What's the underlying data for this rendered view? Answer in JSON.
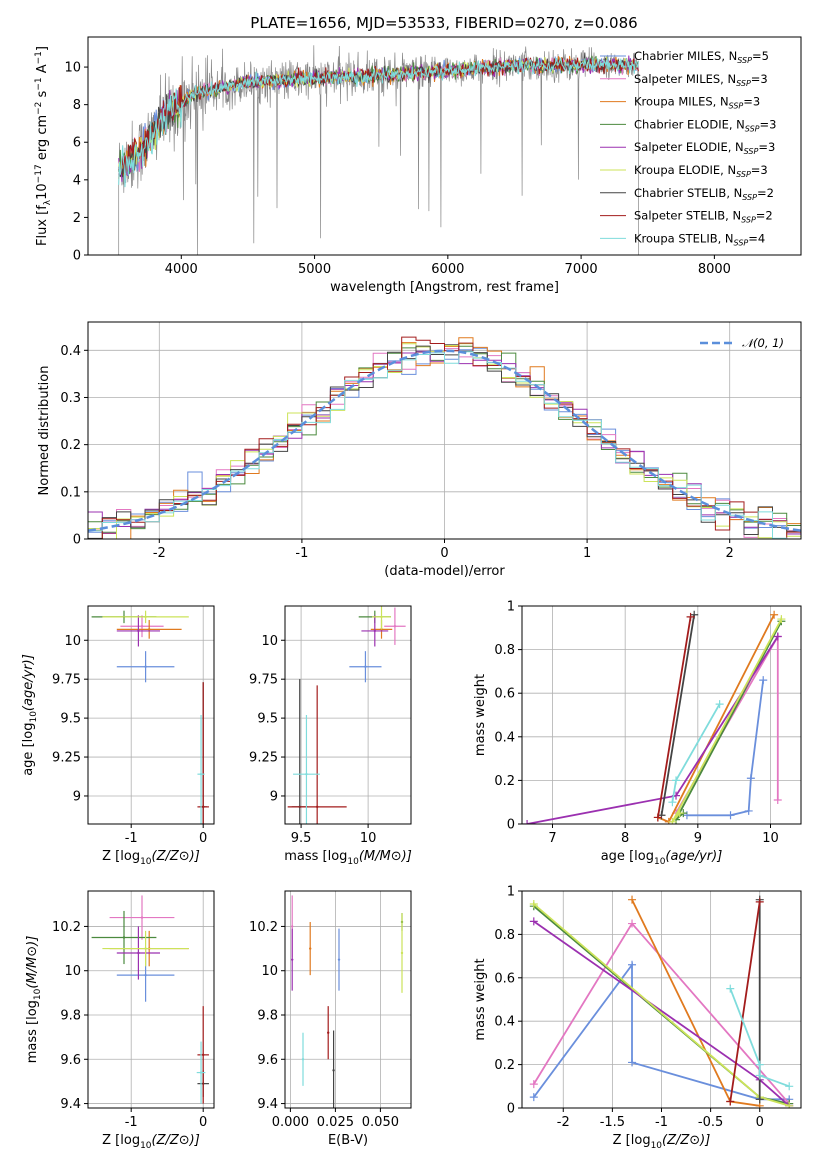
{
  "figure": {
    "title": "PLATE=1656, MJD=53533, FIBERID=0270, z=0.086"
  },
  "colors": {
    "Chabrier MILES": "#6a8fdc",
    "Salpeter MILES": "#e377c2",
    "Kroupa MILES": "#e07a1f",
    "Chabrier ELODIE": "#4b8a3e",
    "Salpeter ELODIE": "#9b30b0",
    "Kroupa ELODIE": "#cce35a",
    "Chabrier STELIB": "#444444",
    "Salpeter STELIB": "#a31c1c",
    "Kroupa STELIB": "#7fdcdc",
    "data": "#888888",
    "gaussian": "#5b8fdb"
  },
  "chart_data": [
    {
      "id": "spectrum",
      "type": "line",
      "title": "PLATE=1656, MJD=53533, FIBERID=0270, z=0.086",
      "xlabel": "wavelength [Angstrom, rest frame]",
      "ylabel": "Flux [f_λ10^-17 erg cm^-2 s^-1 A^-1]",
      "xlim": [
        3300,
        8650
      ],
      "ylim": [
        0,
        11.6
      ],
      "xticks": [
        4000,
        5000,
        6000,
        7000,
        8000
      ],
      "yticks": [
        0,
        2,
        4,
        6,
        8,
        10
      ],
      "legend_position": "upper-right",
      "data_range": [
        3530,
        7430
      ],
      "continuum": [
        [
          3530,
          4.6
        ],
        [
          3700,
          5.6
        ],
        [
          3900,
          7.6
        ],
        [
          4100,
          8.6
        ],
        [
          4300,
          8.9
        ],
        [
          4500,
          9.2
        ],
        [
          4800,
          9.3
        ],
        [
          5000,
          9.4
        ],
        [
          5300,
          9.5
        ],
        [
          5600,
          9.6
        ],
        [
          6000,
          9.8
        ],
        [
          6500,
          10.1
        ],
        [
          7000,
          10.1
        ],
        [
          7430,
          10.1
        ]
      ],
      "legend": [
        "Chabrier MILES, N_SSP=5",
        "Salpeter MILES, N_SSP=3",
        "Kroupa MILES, N_SSP=3",
        "Chabrier ELODIE, N_SSP=3",
        "Salpeter ELODIE, N_SSP=3",
        "Kroupa ELODIE, N_SSP=3",
        "Chabrier STELIB, N_SSP=2",
        "Salpeter STELIB, N_SSP=2",
        "Kroupa STELIB, N_SSP=4"
      ]
    },
    {
      "id": "residuals",
      "type": "line",
      "xlabel": "(data-model)/error",
      "ylabel": "Normed distribution",
      "xlim": [
        -2.5,
        2.5
      ],
      "ylim": [
        0,
        0.46
      ],
      "xticks": [
        -2,
        -1,
        0,
        1,
        2
      ],
      "yticks": [
        0.0,
        0.1,
        0.2,
        0.3,
        0.4
      ],
      "gaussian_label": "N(0,1)",
      "legend_position": "upper-right",
      "bin_width": 0.1
    },
    {
      "id": "age_vs_Z",
      "type": "scatter",
      "xlabel": "Z [log10(Z/Z⊙)]",
      "ylabel": "age  [log10(age/yr)]",
      "xlim": [
        -1.6,
        0.15
      ],
      "ylim": [
        8.82,
        10.22
      ],
      "xticks": [
        -1,
        0
      ],
      "yticks": [
        9.0,
        9.25,
        9.5,
        9.75,
        10.0
      ],
      "points": [
        {
          "model": "Chabrier MILES",
          "x": -0.8,
          "y": 9.83,
          "xerr": 0.4,
          "yerr": 0.1
        },
        {
          "model": "Salpeter MILES",
          "x": -0.85,
          "y": 10.09,
          "xerr": 0.3,
          "yerr": 0.07
        },
        {
          "model": "Kroupa MILES",
          "x": -0.75,
          "y": 10.07,
          "xerr": 0.45,
          "yerr": 0.06
        },
        {
          "model": "Chabrier ELODIE",
          "x": -1.1,
          "y": 10.15,
          "xerr": 0.45,
          "yerr": 0.04
        },
        {
          "model": "Salpeter ELODIE",
          "x": -0.9,
          "y": 10.06,
          "xerr": 0.3,
          "yerr": 0.1
        },
        {
          "model": "Kroupa ELODIE",
          "x": -0.8,
          "y": 10.15,
          "xerr": 0.6,
          "yerr": 0.04
        },
        {
          "model": "Chabrier STELIB",
          "x": 0.0,
          "y": 8.93,
          "xerr": 0.05,
          "yerr": 0.8
        },
        {
          "model": "Salpeter STELIB",
          "x": 0.0,
          "y": 8.93,
          "xerr": 0.08,
          "yerr": 0.8
        },
        {
          "model": "Kroupa STELIB",
          "x": -0.03,
          "y": 9.14,
          "xerr": 0.05,
          "yerr": 0.38
        }
      ]
    },
    {
      "id": "age_vs_mass",
      "type": "scatter",
      "xlabel": "mass [log10(M/M⊙)]",
      "ylabel": "",
      "xlim": [
        9.38,
        10.32
      ],
      "ylim": [
        8.82,
        10.22
      ],
      "xticks": [
        9.5,
        10.0
      ],
      "yticks": [
        9.0,
        9.25,
        9.5,
        9.75,
        10.0
      ],
      "points": [
        {
          "model": "Chabrier MILES",
          "x": 9.98,
          "y": 9.83,
          "xerr": 0.12,
          "yerr": 0.1
        },
        {
          "model": "Salpeter MILES",
          "x": 10.2,
          "y": 10.09,
          "xerr": 0.08,
          "yerr": 0.12
        },
        {
          "model": "Kroupa MILES",
          "x": 10.1,
          "y": 10.07,
          "xerr": 0.08,
          "yerr": 0.06
        },
        {
          "model": "Chabrier ELODIE",
          "x": 10.05,
          "y": 10.15,
          "xerr": 0.12,
          "yerr": 0.04
        },
        {
          "model": "Salpeter ELODIE",
          "x": 10.05,
          "y": 10.06,
          "xerr": 0.1,
          "yerr": 0.1
        },
        {
          "model": "Kroupa ELODIE",
          "x": 10.1,
          "y": 10.15,
          "xerr": 0.07,
          "yerr": 0.08
        },
        {
          "model": "Chabrier STELIB",
          "x": 9.49,
          "y": 8.93,
          "xerr": 0.06,
          "yerr": 0.82
        },
        {
          "model": "Salpeter STELIB",
          "x": 9.62,
          "y": 8.93,
          "xerr": 0.22,
          "yerr": 0.78
        },
        {
          "model": "Kroupa STELIB",
          "x": 9.54,
          "y": 9.14,
          "xerr": 0.1,
          "yerr": 0.38
        }
      ]
    },
    {
      "id": "weight_vs_age",
      "type": "line",
      "xlabel": "age  [log10(age/yr)]",
      "ylabel": "mass weight",
      "xlim": [
        6.58,
        10.42
      ],
      "ylim": [
        0,
        1.0
      ],
      "xticks": [
        7,
        8,
        9,
        10
      ],
      "yticks": [
        0.0,
        0.2,
        0.4,
        0.6,
        0.8,
        1.0
      ],
      "series": [
        {
          "model": "Chabrier MILES",
          "x": [
            8.85,
            9.45,
            9.7,
            9.73,
            9.9
          ],
          "y": [
            0.04,
            0.04,
            0.06,
            0.21,
            0.66
          ]
        },
        {
          "model": "Salpeter MILES",
          "x": [
            8.7,
            10.1,
            10.1
          ],
          "y": [
            0.05,
            0.86,
            0.11
          ]
        },
        {
          "model": "Kroupa MILES",
          "x": [
            8.45,
            8.6,
            10.05
          ],
          "y": [
            0.03,
            0.01,
            0.96
          ]
        },
        {
          "model": "Chabrier ELODIE",
          "x": [
            8.8,
            8.7,
            10.15
          ],
          "y": [
            0.05,
            0.02,
            0.93
          ]
        },
        {
          "model": "Salpeter ELODIE",
          "x": [
            6.65,
            8.7,
            10.1
          ],
          "y": [
            0.0,
            0.13,
            0.86
          ]
        },
        {
          "model": "Kroupa ELODIE",
          "x": [
            8.75,
            8.65,
            10.15
          ],
          "y": [
            0.05,
            0.01,
            0.94
          ]
        },
        {
          "model": "Chabrier STELIB",
          "x": [
            8.5,
            8.95
          ],
          "y": [
            0.04,
            0.96
          ]
        },
        {
          "model": "Salpeter STELIB",
          "x": [
            8.45,
            8.9
          ],
          "y": [
            0.03,
            0.95
          ]
        },
        {
          "model": "Kroupa STELIB",
          "x": [
            8.65,
            8.7,
            9.3
          ],
          "y": [
            0.1,
            0.2,
            0.55
          ]
        }
      ]
    },
    {
      "id": "mass_vs_Z",
      "type": "scatter",
      "xlabel": "Z [log10(Z/Z⊙)]",
      "ylabel": "mass [log10(M/M⊙)]",
      "xlim": [
        -1.6,
        0.15
      ],
      "ylim": [
        9.38,
        10.36
      ],
      "xticks": [
        -1,
        0
      ],
      "yticks": [
        9.4,
        9.6,
        9.8,
        10.0,
        10.2
      ],
      "points": [
        {
          "model": "Chabrier MILES",
          "x": -0.8,
          "y": 9.98,
          "xerr": 0.4,
          "yerr": 0.12
        },
        {
          "model": "Salpeter MILES",
          "x": -0.85,
          "y": 10.24,
          "xerr": 0.45,
          "yerr": 0.1
        },
        {
          "model": "Kroupa MILES",
          "x": -0.75,
          "y": 10.1,
          "xerr": 0.55,
          "yerr": 0.08
        },
        {
          "model": "Chabrier ELODIE",
          "x": -1.1,
          "y": 10.15,
          "xerr": 0.45,
          "yerr": 0.12
        },
        {
          "model": "Salpeter ELODIE",
          "x": -0.9,
          "y": 10.08,
          "xerr": 0.3,
          "yerr": 0.12
        },
        {
          "model": "Kroupa ELODIE",
          "x": -0.8,
          "y": 10.1,
          "xerr": 0.6,
          "yerr": 0.08
        },
        {
          "model": "Chabrier STELIB",
          "x": 0.0,
          "y": 9.49,
          "xerr": 0.08,
          "yerr": 0.06
        },
        {
          "model": "Salpeter STELIB",
          "x": 0.0,
          "y": 9.62,
          "xerr": 0.08,
          "yerr": 0.22
        },
        {
          "model": "Kroupa STELIB",
          "x": -0.03,
          "y": 9.54,
          "xerr": 0.06,
          "yerr": 0.14
        }
      ]
    },
    {
      "id": "mass_vs_ebv",
      "type": "scatter",
      "xlabel": "E(B-V)",
      "ylabel": "",
      "xlim": [
        -0.003,
        0.067
      ],
      "ylim": [
        9.38,
        10.36
      ],
      "xticks": [
        0.0,
        0.025,
        0.05
      ],
      "xtick_labels": [
        "0.000",
        "0.025",
        "0.050"
      ],
      "yticks": [
        9.4,
        9.6,
        9.8,
        10.0,
        10.2
      ],
      "points": [
        {
          "model": "Chabrier MILES",
          "x": 0.027,
          "y": 10.05,
          "yerr": 0.14
        },
        {
          "model": "Salpeter MILES",
          "x": 0.001,
          "y": 10.2,
          "yerr": 0.14
        },
        {
          "model": "Kroupa MILES",
          "x": 0.011,
          "y": 10.1,
          "yerr": 0.12
        },
        {
          "model": "Chabrier ELODIE",
          "x": 0.062,
          "y": 10.22,
          "yerr": 0.04
        },
        {
          "model": "Salpeter ELODIE",
          "x": 0.001,
          "y": 10.05,
          "yerr": 0.14
        },
        {
          "model": "Kroupa ELODIE",
          "x": 0.062,
          "y": 10.08,
          "yerr": 0.18
        },
        {
          "model": "Chabrier STELIB",
          "x": 0.024,
          "y": 9.55,
          "yerr": 0.18
        },
        {
          "model": "Salpeter STELIB",
          "x": 0.021,
          "y": 9.72,
          "yerr": 0.12
        },
        {
          "model": "Kroupa STELIB",
          "x": 0.007,
          "y": 9.6,
          "yerr": 0.12
        }
      ]
    },
    {
      "id": "weight_vs_Z",
      "type": "line",
      "xlabel": "Z [log10(Z/Z⊙)]",
      "ylabel": "mass weight",
      "xlim": [
        -2.42,
        0.42
      ],
      "ylim": [
        0,
        1.0
      ],
      "xticks": [
        -2.0,
        -1.5,
        -1.0,
        -0.5,
        0.0
      ],
      "yticks": [
        0.0,
        0.2,
        0.4,
        0.6,
        0.8,
        1.0
      ],
      "series": [
        {
          "model": "Chabrier MILES",
          "x": [
            -2.3,
            -1.3,
            -1.3,
            0.0,
            0.3
          ],
          "y": [
            0.05,
            0.66,
            0.21,
            0.04,
            0.04
          ]
        },
        {
          "model": "Salpeter MILES",
          "x": [
            -2.3,
            -1.3,
            0.3
          ],
          "y": [
            0.11,
            0.85,
            0.02
          ]
        },
        {
          "model": "Kroupa MILES",
          "x": [
            -1.3,
            -0.3,
            0.0
          ],
          "y": [
            0.96,
            0.03,
            0.01
          ]
        },
        {
          "model": "Chabrier ELODIE",
          "x": [
            -2.3,
            0.0,
            0.3
          ],
          "y": [
            0.93,
            0.05,
            0.02
          ]
        },
        {
          "model": "Salpeter ELODIE",
          "x": [
            -2.3,
            0.0,
            0.3
          ],
          "y": [
            0.86,
            0.13,
            0.01
          ]
        },
        {
          "model": "Kroupa ELODIE",
          "x": [
            -2.3,
            0.0,
            0.3
          ],
          "y": [
            0.94,
            0.05,
            0.01
          ]
        },
        {
          "model": "Chabrier STELIB",
          "x": [
            0.0,
            0.0
          ],
          "y": [
            0.96,
            0.04
          ]
        },
        {
          "model": "Salpeter STELIB",
          "x": [
            -0.3,
            0.0
          ],
          "y": [
            0.03,
            0.95
          ]
        },
        {
          "model": "Kroupa STELIB",
          "x": [
            -0.3,
            0.0,
            0.0,
            0.3
          ],
          "y": [
            0.55,
            0.2,
            0.15,
            0.1
          ]
        }
      ]
    }
  ]
}
